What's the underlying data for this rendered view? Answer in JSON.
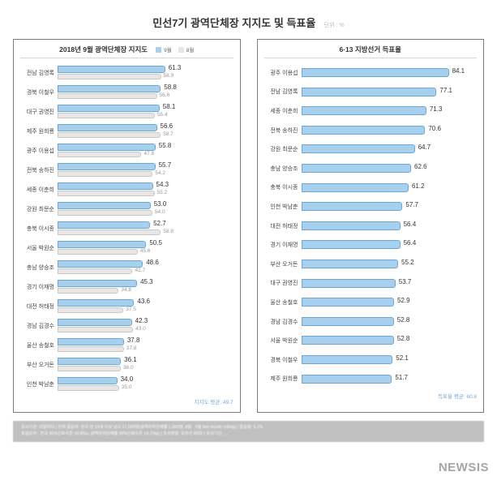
{
  "page_title": "민선7기 광역단체장 지지도 및 득표율",
  "unit_label": "단위 : %",
  "watermark": "NEWSIS",
  "colors": {
    "primary": "#a7d0ef",
    "secondary": "#e6e6e6",
    "primary_border": "#6da8d8",
    "secondary_border": "#c9c9c9",
    "avg_text": "#6a9ed4"
  },
  "chart_left": {
    "title": "2018년 9월 광역단체장 지지도",
    "legend": [
      {
        "label": "9월",
        "color": "#a7d0ef"
      },
      {
        "label": "8월",
        "color": "#e6e6e6"
      }
    ],
    "max": 100,
    "avg_note": "지지도 평균: 49.7",
    "items": [
      {
        "label": "전남 김영록",
        "val_pri": 61.3,
        "val_sec": 58.9
      },
      {
        "label": "경북 이철우",
        "val_pri": 58.8,
        "val_sec": 56.6
      },
      {
        "label": "대구 권영진",
        "val_pri": 58.1,
        "val_sec": 55.4
      },
      {
        "label": "제주 원희룡",
        "val_pri": 56.6,
        "val_sec": 58.7
      },
      {
        "label": "광주 이용섭",
        "val_pri": 55.8,
        "val_sec": 47.8
      },
      {
        "label": "전북 송하진",
        "val_pri": 55.7,
        "val_sec": 54.2
      },
      {
        "label": "세종 이춘희",
        "val_pri": 54.3,
        "val_sec": 55.2
      },
      {
        "label": "강원 최문순",
        "val_pri": 53.0,
        "val_sec": 54.0
      },
      {
        "label": "충북 이시종",
        "val_pri": 52.7,
        "val_sec": 58.8
      },
      {
        "label": "서울 박원순",
        "val_pri": 50.5,
        "val_sec": 45.6
      },
      {
        "label": "충남 양승조",
        "val_pri": 48.6,
        "val_sec": 42.7
      },
      {
        "label": "경기 이재명",
        "val_pri": 45.3,
        "val_sec": 34.8
      },
      {
        "label": "대전 허태정",
        "val_pri": 43.6,
        "val_sec": 37.5
      },
      {
        "label": "경남 김경수",
        "val_pri": 42.3,
        "val_sec": 43.0
      },
      {
        "label": "울산 송철호",
        "val_pri": 37.8,
        "val_sec": 37.8
      },
      {
        "label": "부산 오거돈",
        "val_pri": 36.1,
        "val_sec": 36.0
      },
      {
        "label": "인천 박남춘",
        "val_pri": 34.0,
        "val_sec": 35.0
      }
    ]
  },
  "chart_right": {
    "title": "6·13 지방선거 득표율",
    "max": 100,
    "avg_note": "득표율 평균: 60.8",
    "items": [
      {
        "label": "광주 이용섭",
        "val": 84.1
      },
      {
        "label": "전남 김영록",
        "val": 77.1
      },
      {
        "label": "세종 이춘희",
        "val": 71.3
      },
      {
        "label": "전북 송하진",
        "val": 70.6
      },
      {
        "label": "강원 최문순",
        "val": 64.7
      },
      {
        "label": "충남 양승조",
        "val": 62.6
      },
      {
        "label": "충북 이시종",
        "val": 61.2
      },
      {
        "label": "인천 박남춘",
        "val": 57.7
      },
      {
        "label": "대전 허태정",
        "val": 56.4
      },
      {
        "label": "경기 이재명",
        "val": 56.4
      },
      {
        "label": "부산 오거돈",
        "val": 55.2
      },
      {
        "label": "대구 권영진",
        "val": 53.7
      },
      {
        "label": "울산 송철호",
        "val": 52.9
      },
      {
        "label": "경남 김경수",
        "val": 52.8
      },
      {
        "label": "서울 박원순",
        "val": 52.8
      },
      {
        "label": "경북 이철우",
        "val": 52.1
      },
      {
        "label": "제주 원희룡",
        "val": 51.7
      }
    ]
  },
  "footer_lines": [
    "조사기관: 리얼미터  |  전체 응답자: 전국 만 19세 이상 남녀 17,000명(광역자치단체별 1,000명, 8월 · 9월 two-month rolling)  |  응답률: 5.1%",
    "표집오차 : 전국 95%신뢰수준 ±0.8%p, 광역자치단체별 95%신뢰수준 ±3.1%p)  |  조사방법: 유무선 RDD  |  조사기간: …"
  ]
}
